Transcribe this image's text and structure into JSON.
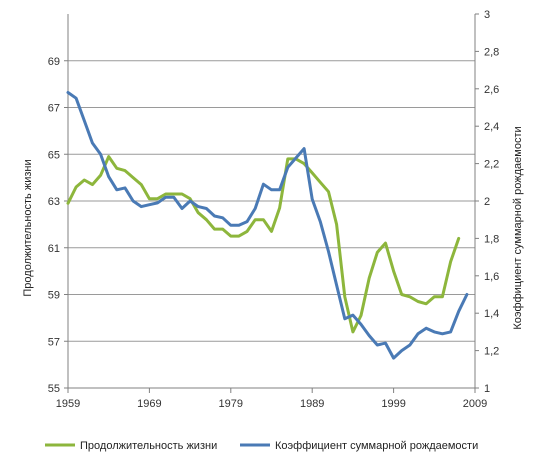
{
  "chart_data": {
    "type": "line",
    "title": "",
    "xlabel": "",
    "ylabel_left": "Продолжительность жизни",
    "ylabel_right": "Коэффициент суммарной рождаемости",
    "xlim": [
      1959,
      2009
    ],
    "x_ticks": [
      1959,
      1969,
      1979,
      1989,
      1999,
      2009
    ],
    "ylim_left": [
      55,
      71
    ],
    "y_ticks_left": [
      55,
      57,
      59,
      61,
      63,
      65,
      67,
      69
    ],
    "ylim_right": [
      1,
      3
    ],
    "y_ticks_right": [
      "1",
      "1,2",
      "1,4",
      "1,6",
      "1,8",
      "2",
      "2,2",
      "2,4",
      "2,6",
      "2,8",
      "3"
    ],
    "y_ticks_right_values": [
      1,
      1.2,
      1.4,
      1.6,
      1.8,
      2,
      2.2,
      2.4,
      2.6,
      2.8,
      3
    ],
    "grid": "horizontal",
    "legend_position": "bottom",
    "series": [
      {
        "name": "Продолжительность жизни",
        "axis": "left",
        "color": "#8db63c",
        "x": [
          1959,
          1960,
          1961,
          1962,
          1963,
          1964,
          1965,
          1966,
          1967,
          1968,
          1969,
          1970,
          1971,
          1972,
          1973,
          1974,
          1975,
          1976,
          1977,
          1978,
          1979,
          1980,
          1981,
          1982,
          1983,
          1984,
          1985,
          1986,
          1987,
          1988,
          1989,
          1990,
          1991,
          1992,
          1993,
          1994,
          1995,
          1996,
          1997,
          1998,
          1999,
          2000,
          2001,
          2002,
          2003,
          2004,
          2005,
          2006,
          2007
        ],
        "values": [
          62.9,
          63.6,
          63.9,
          63.7,
          64.1,
          64.9,
          64.4,
          64.3,
          64.0,
          63.7,
          63.1,
          63.1,
          63.3,
          63.3,
          63.3,
          63.1,
          62.5,
          62.2,
          61.8,
          61.8,
          61.5,
          61.5,
          61.7,
          62.2,
          62.2,
          61.7,
          62.7,
          64.8,
          64.8,
          64.6,
          64.2,
          63.8,
          63.4,
          62.0,
          58.9,
          57.4,
          58.1,
          59.7,
          60.8,
          61.2,
          60.0,
          59.0,
          58.9,
          58.7,
          58.6,
          58.9,
          58.9,
          60.4,
          61.4
        ]
      },
      {
        "name": "Коэффициент суммарной рождаемости",
        "axis": "right",
        "color": "#4a7ab5",
        "x": [
          1959,
          1960,
          1961,
          1962,
          1963,
          1964,
          1965,
          1966,
          1967,
          1968,
          1969,
          1970,
          1971,
          1972,
          1973,
          1974,
          1975,
          1976,
          1977,
          1978,
          1979,
          1980,
          1981,
          1982,
          1983,
          1984,
          1985,
          1986,
          1987,
          1988,
          1989,
          1990,
          1991,
          1992,
          1993,
          1994,
          1995,
          1996,
          1997,
          1998,
          1999,
          2000,
          2001,
          2002,
          2003,
          2004,
          2005,
          2006,
          2007,
          2008
        ],
        "values": [
          2.58,
          2.55,
          2.43,
          2.31,
          2.25,
          2.13,
          2.06,
          2.07,
          2.0,
          1.97,
          1.98,
          1.99,
          2.02,
          2.02,
          1.96,
          2.0,
          1.97,
          1.96,
          1.92,
          1.91,
          1.87,
          1.87,
          1.89,
          1.96,
          2.09,
          2.06,
          2.06,
          2.18,
          2.23,
          2.28,
          2.01,
          1.89,
          1.73,
          1.55,
          1.37,
          1.39,
          1.34,
          1.28,
          1.23,
          1.24,
          1.16,
          1.2,
          1.23,
          1.29,
          1.32,
          1.3,
          1.29,
          1.3,
          1.41,
          1.5
        ]
      }
    ]
  }
}
